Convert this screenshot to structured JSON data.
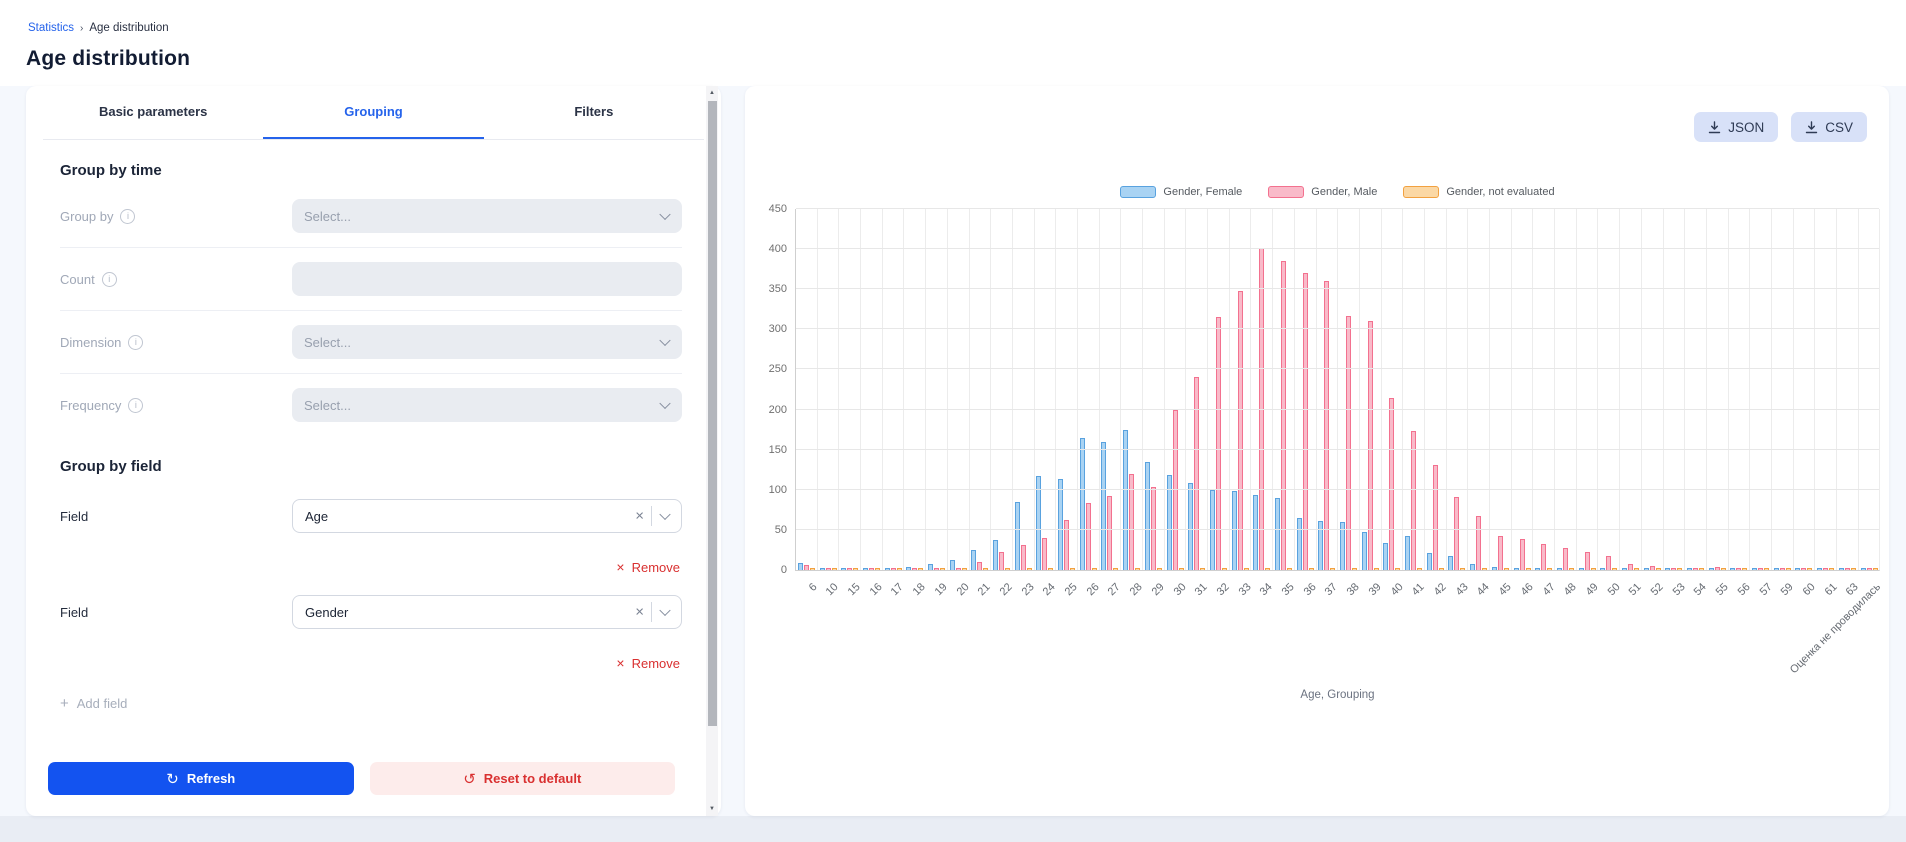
{
  "breadcrumb": {
    "root": "Statistics",
    "current": "Age distribution"
  },
  "page_title": "Age distribution",
  "icons": {
    "breadcrumb_separator": "›",
    "clear": "×",
    "remove": "×",
    "add": "+",
    "refresh": "↻",
    "reset": "↺",
    "info": "i",
    "scroll_up": "▲",
    "scroll_down": "▼"
  },
  "panel": {
    "tabs": [
      {
        "label": "Basic parameters",
        "active": false
      },
      {
        "label": "Grouping",
        "active": true
      },
      {
        "label": "Filters",
        "active": false
      }
    ],
    "group_by_time": {
      "heading": "Group by time",
      "rows": [
        {
          "label": "Group by",
          "type": "select",
          "placeholder": "Select...",
          "disabled": true
        },
        {
          "label": "Count",
          "type": "input",
          "value": "",
          "disabled": true
        },
        {
          "label": "Dimension",
          "type": "select",
          "placeholder": "Select...",
          "disabled": true
        },
        {
          "label": "Frequency",
          "type": "select",
          "placeholder": "Select...",
          "disabled": true
        }
      ]
    },
    "group_by_field": {
      "heading": "Group by field",
      "fields": [
        {
          "label": "Field",
          "value": "Age",
          "remove_label": "Remove"
        },
        {
          "label": "Field",
          "value": "Gender",
          "remove_label": "Remove"
        }
      ],
      "add_label": "Add field"
    },
    "actions": {
      "refresh_label": "Refresh",
      "reset_label": "Reset to default"
    }
  },
  "chart_panel": {
    "export_buttons": [
      {
        "label": "JSON"
      },
      {
        "label": "CSV"
      }
    ]
  },
  "chart_data": {
    "type": "bar",
    "title": "",
    "xlabel": "Age, Grouping",
    "ylabel": "",
    "ylim": [
      0,
      450
    ],
    "ytick_step": 50,
    "grid": true,
    "legend_position": "top",
    "categories": [
      "6",
      "10",
      "15",
      "16",
      "17",
      "18",
      "19",
      "20",
      "21",
      "22",
      "23",
      "24",
      "25",
      "26",
      "27",
      "28",
      "29",
      "30",
      "31",
      "32",
      "33",
      "34",
      "35",
      "36",
      "37",
      "38",
      "39",
      "40",
      "41",
      "42",
      "43",
      "44",
      "45",
      "46",
      "47",
      "48",
      "49",
      "50",
      "51",
      "52",
      "53",
      "54",
      "55",
      "56",
      "57",
      "59",
      "60",
      "61",
      "63",
      "Оценка не проводилась"
    ],
    "series": [
      {
        "name": "Gender, Female",
        "fill": "#a9d3f3",
        "stroke": "#59a2df",
        "values": [
          9,
          3,
          3,
          3,
          3,
          4,
          7,
          13,
          25,
          37,
          85,
          117,
          113,
          165,
          160,
          175,
          135,
          118,
          108,
          100,
          98,
          93,
          90,
          65,
          61,
          60,
          48,
          34,
          43,
          21,
          17,
          8,
          4,
          3,
          3,
          2,
          2,
          2,
          2,
          2,
          2,
          2,
          2,
          3,
          2,
          2,
          2,
          2,
          2,
          3
        ]
      },
      {
        "name": "Gender, Male",
        "fill": "#f9bac9",
        "stroke": "#f3718f",
        "values": [
          6,
          3,
          3,
          3,
          3,
          3,
          3,
          3,
          10,
          23,
          31,
          40,
          62,
          84,
          92,
          120,
          104,
          200,
          240,
          315,
          348,
          401,
          385,
          370,
          360,
          317,
          310,
          215,
          173,
          131,
          91,
          67,
          42,
          39,
          33,
          28,
          22,
          17,
          8,
          5,
          2,
          2,
          4,
          2,
          3,
          2,
          2,
          2,
          2,
          3
        ]
      },
      {
        "name": "Gender, not evaluated",
        "fill": "#fbd8a5",
        "stroke": "#f2a140",
        "values": [
          3,
          3,
          3,
          3,
          3,
          3,
          3,
          3,
          3,
          3,
          3,
          3,
          3,
          3,
          3,
          3,
          3,
          3,
          3,
          3,
          3,
          3,
          3,
          3,
          3,
          3,
          3,
          3,
          3,
          3,
          3,
          3,
          3,
          3,
          3,
          3,
          3,
          3,
          3,
          3,
          2,
          2,
          2,
          2,
          2,
          2,
          2,
          2,
          2,
          3
        ]
      }
    ]
  }
}
